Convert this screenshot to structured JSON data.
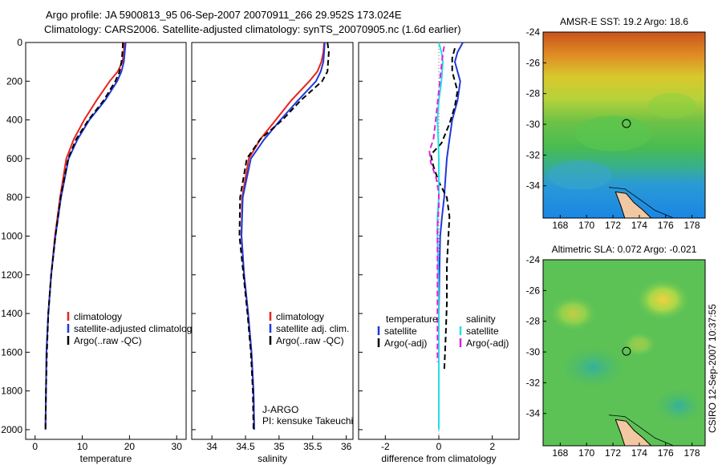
{
  "header": {
    "line1": "Argo profile: JA 5900813_95 06-Sep-2007 20070911_266 29.952S 173.024E",
    "line2": "Climatology: CARS2006. Satellite-adjusted climatology: synTS_20070905.nc (1.6d earlier)"
  },
  "side_label": "CSIRO 12-Sep-2007 10:37:55",
  "colors": {
    "climatology": "#e8231e",
    "satellite": "#1f3ad8",
    "argo": "#000000",
    "salinity_satellite": "#22e0e6",
    "salinity_argo": "#e020e0"
  },
  "chart_data": [
    {
      "type": "line",
      "title": "",
      "xlabel": "temperature",
      "ylabel": "",
      "xlim": [
        -2,
        32
      ],
      "ylim": [
        2050,
        0
      ],
      "xticks": [
        "0",
        "10",
        "20",
        "30"
      ],
      "xtick_values": [
        0,
        10,
        20,
        30
      ],
      "yticks": [
        "0",
        "200",
        "400",
        "600",
        "800",
        "1000",
        "1200",
        "1400",
        "1600",
        "1800",
        "2000"
      ],
      "ytick_values": [
        0,
        200,
        400,
        600,
        800,
        1000,
        1200,
        1400,
        1600,
        1800,
        2000
      ],
      "legend": [
        "climatology",
        "satellite-adjusted climatology",
        "Argo(..raw -QC)"
      ],
      "legend_position": "lower-right",
      "series": [
        {
          "name": "climatology",
          "style": "solid",
          "color": "#e8231e",
          "x": [
            18.9,
            18.8,
            18.5,
            17.5,
            15.8,
            13.0,
            10.4,
            8.2,
            6.6,
            5.3,
            4.2,
            3.4,
            2.8,
            2.4,
            2.3,
            2.2
          ],
          "y": [
            0,
            50,
            100,
            150,
            200,
            300,
            400,
            500,
            600,
            800,
            1000,
            1200,
            1400,
            1600,
            1800,
            2000
          ]
        },
        {
          "name": "satellite-adjusted climatology",
          "style": "solid",
          "color": "#1f3ad8",
          "x": [
            19.2,
            19.0,
            18.8,
            18.3,
            17.4,
            14.8,
            11.5,
            9.0,
            7.1,
            5.5,
            4.3,
            3.4,
            2.8,
            2.4,
            2.3,
            2.2
          ],
          "y": [
            0,
            50,
            100,
            150,
            200,
            300,
            400,
            500,
            600,
            800,
            1000,
            1200,
            1400,
            1600,
            1800,
            2000
          ]
        },
        {
          "name": "Argo(..raw -QC)",
          "style": "dashed",
          "color": "#000000",
          "x": [
            18.6,
            18.5,
            18.3,
            17.9,
            17.0,
            14.5,
            11.3,
            8.7,
            7.0,
            5.4,
            4.3,
            3.4,
            2.8,
            2.5,
            2.3,
            2.2
          ],
          "y": [
            0,
            50,
            100,
            150,
            200,
            300,
            400,
            500,
            600,
            800,
            1000,
            1200,
            1400,
            1600,
            1800,
            2000
          ]
        }
      ]
    },
    {
      "type": "line",
      "title": "",
      "xlabel": "salinity",
      "ylabel": "",
      "xlim": [
        33.7,
        36.1
      ],
      "ylim": [
        2050,
        0
      ],
      "xticks": [
        "34",
        "34.5",
        "35",
        "35.5",
        "36"
      ],
      "xtick_values": [
        34,
        34.5,
        35,
        35.5,
        36
      ],
      "legend": [
        "climatology",
        "satellite adj. clim.",
        "Argo(..raw -QC)"
      ],
      "legend_position": "lower-right",
      "annotation": [
        "J-ARGO",
        "PI: kensuke Takeuchi"
      ],
      "series": [
        {
          "name": "climatology",
          "style": "solid",
          "color": "#e8231e",
          "x": [
            35.67,
            35.66,
            35.63,
            35.57,
            35.45,
            35.18,
            34.95,
            34.72,
            34.55,
            34.45,
            34.44,
            34.48,
            34.54,
            34.59,
            34.62,
            34.63
          ],
          "y": [
            0,
            50,
            100,
            150,
            200,
            300,
            400,
            500,
            600,
            800,
            1000,
            1200,
            1400,
            1600,
            1800,
            2000
          ]
        },
        {
          "name": "satellite adj. clim.",
          "style": "solid",
          "color": "#1f3ad8",
          "x": [
            35.68,
            35.67,
            35.66,
            35.62,
            35.55,
            35.28,
            35.02,
            34.78,
            34.58,
            34.46,
            34.44,
            34.48,
            34.54,
            34.59,
            34.62,
            34.63
          ],
          "y": [
            0,
            50,
            100,
            150,
            200,
            300,
            400,
            500,
            600,
            800,
            1000,
            1200,
            1400,
            1600,
            1800,
            2000
          ]
        },
        {
          "name": "Argo(..raw -QC)",
          "style": "dashed",
          "color": "#000000",
          "x": [
            35.72,
            35.74,
            35.73,
            35.72,
            35.64,
            35.32,
            35.05,
            34.72,
            34.52,
            34.42,
            34.41,
            34.47,
            34.53,
            34.58,
            34.61,
            34.62
          ],
          "y": [
            0,
            50,
            100,
            150,
            200,
            300,
            400,
            500,
            600,
            800,
            1000,
            1200,
            1400,
            1600,
            1800,
            2000
          ]
        }
      ]
    },
    {
      "type": "line",
      "title": "",
      "xlabel": "difference from climatology",
      "ylabel": "",
      "xlim": [
        -3,
        3
      ],
      "ylim": [
        2050,
        0
      ],
      "xticks": [
        "-2",
        "0",
        "2"
      ],
      "xtick_values": [
        -2,
        0,
        2
      ],
      "legend_headers": [
        "temperature",
        "salinity"
      ],
      "legend": [
        "satellite",
        "Argo(-adj)",
        "satellite",
        "Argo(-adj)"
      ],
      "legend_position": "lower",
      "series": [
        {
          "name": "temperature satellite",
          "style": "solid",
          "color": "#1f3ad8",
          "x": [
            0.9,
            0.7,
            0.6,
            0.8,
            0.7,
            0.5,
            0.4,
            0.3,
            0.25,
            0.2,
            0.12,
            0.05,
            0.02,
            0.0,
            0.0,
            0.0
          ],
          "y": [
            0,
            50,
            100,
            200,
            300,
            400,
            500,
            600,
            700,
            800,
            900,
            1000,
            1200,
            1400,
            1700,
            2000
          ]
        },
        {
          "name": "temperature Argo(-adj)",
          "style": "dashed",
          "color": "#000000",
          "x": [
            0.6,
            0.5,
            0.5,
            0.7,
            0.6,
            0.4,
            0.1,
            -0.3,
            -0.2,
            0.0,
            0.3,
            0.4,
            0.3,
            0.3,
            0.25,
            0.2
          ],
          "y": [
            30,
            80,
            150,
            250,
            330,
            420,
            520,
            580,
            640,
            720,
            800,
            900,
            1150,
            1350,
            1550,
            1700
          ]
        },
        {
          "name": "salinity satellite",
          "style": "solid",
          "color": "#22e0e6",
          "x": [
            0.0,
            0.1,
            0.15,
            0.1,
            0.0,
            -0.05,
            -0.02,
            0.0,
            0.0,
            0.0,
            -0.05,
            -0.05,
            -0.02,
            0.0,
            0.0,
            0.0
          ],
          "y": [
            0,
            50,
            100,
            200,
            300,
            400,
            500,
            600,
            700,
            800,
            900,
            1000,
            1200,
            1400,
            1700,
            2000
          ]
        },
        {
          "name": "salinity Argo(-adj)",
          "style": "dashed",
          "color": "#e020e0",
          "x": [
            0.2,
            0.15,
            0.1,
            0.0,
            -0.1,
            -0.2,
            -0.35,
            -0.3,
            -0.1,
            0.0,
            0.0,
            -0.05,
            -0.05,
            -0.05,
            -0.05
          ],
          "y": [
            20,
            60,
            120,
            250,
            380,
            500,
            560,
            620,
            700,
            780,
            850,
            950,
            1200,
            1500,
            1650
          ]
        }
      ]
    },
    {
      "type": "heatmap",
      "title": "AMSR-E SST: 19.2 Argo: 18.6",
      "xticks": [
        "168",
        "170",
        "172",
        "174",
        "176",
        "178"
      ],
      "xtick_values": [
        168,
        170,
        172,
        174,
        176,
        178
      ],
      "yticks": [
        "-24",
        "-26",
        "-28",
        "-30",
        "-32",
        "-34"
      ],
      "ytick_values": [
        -24,
        -26,
        -28,
        -30,
        -32,
        -34
      ],
      "xlim": [
        166.7,
        179.0
      ],
      "ylim": [
        -36.1,
        -24.0
      ],
      "marker": {
        "lon": 173.024,
        "lat": -29.952
      }
    },
    {
      "type": "heatmap",
      "title": "Altimetric SLA: 0.072 Argo: -0.021",
      "xticks": [
        "168",
        "170",
        "172",
        "174",
        "176",
        "178"
      ],
      "xtick_values": [
        168,
        170,
        172,
        174,
        176,
        178
      ],
      "yticks": [
        "-24",
        "-26",
        "-28",
        "-30",
        "-32",
        "-34"
      ],
      "ytick_values": [
        -24,
        -26,
        -28,
        -30,
        -32,
        -34
      ],
      "xlim": [
        166.7,
        179.0
      ],
      "ylim": [
        -36.1,
        -24.0
      ],
      "marker": {
        "lon": 173.024,
        "lat": -29.952
      }
    }
  ]
}
